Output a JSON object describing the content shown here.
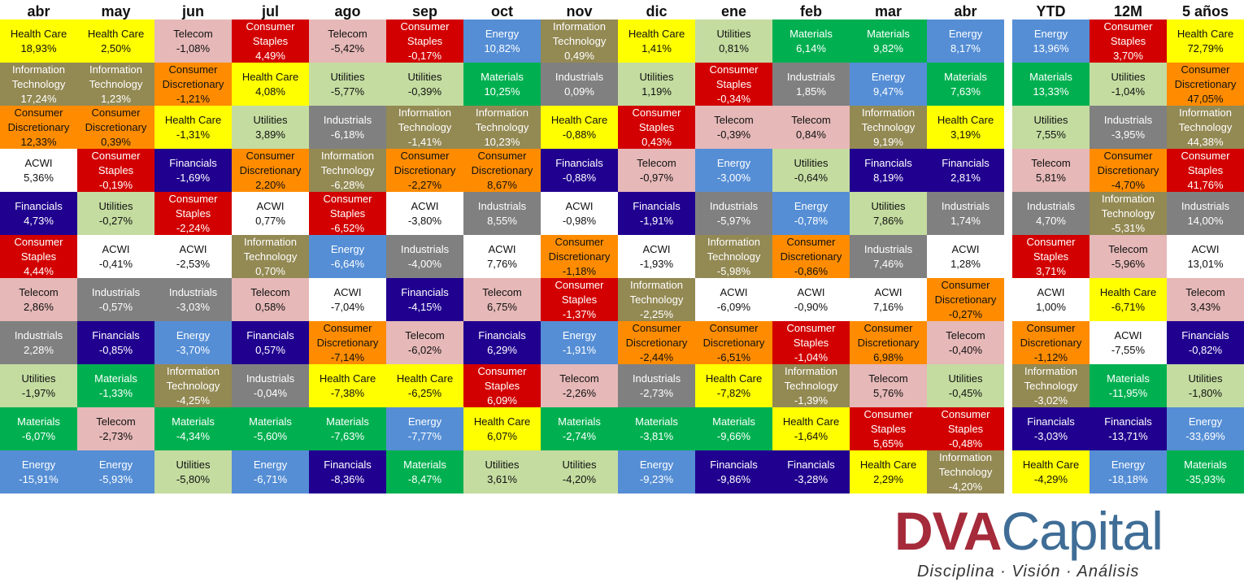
{
  "colors": {
    "Health Care": "#ffff00",
    "Information Technology": "#938953",
    "Consumer Discretionary": "#ff8c00",
    "ACWI": "#ffffff",
    "Financials": "#20008f",
    "Consumer Staples": "#d20000",
    "Telecom": "#e6b8b8",
    "Industrials": "#808080",
    "Utilities": "#c4dca0",
    "Materials": "#00b050",
    "Energy": "#558ed5"
  },
  "dark_text_sectors": [
    "Health Care",
    "Consumer Discretionary",
    "ACWI",
    "Telecom",
    "Utilities"
  ],
  "brand": {
    "dva": "DVA",
    "capital": "Capital",
    "tagline": "Disciplina · Visión · Análisis"
  },
  "chart_data": {
    "type": "table",
    "columns": [
      {
        "header": "abr",
        "cells": [
          {
            "s": "Health Care",
            "v": "18,93%"
          },
          {
            "s": "Information Technology",
            "v": "17,24%"
          },
          {
            "s": "Consumer Discretionary",
            "v": "12,33%"
          },
          {
            "s": "ACWI",
            "v": "5,36%"
          },
          {
            "s": "Financials",
            "v": "4,73%"
          },
          {
            "s": "Consumer Staples",
            "v": "4,44%"
          },
          {
            "s": "Telecom",
            "v": "2,86%"
          },
          {
            "s": "Industrials",
            "v": "2,28%"
          },
          {
            "s": "Utilities",
            "v": "-1,97%"
          },
          {
            "s": "Materials",
            "v": "-6,07%"
          },
          {
            "s": "Energy",
            "v": "-15,91%"
          }
        ]
      },
      {
        "header": "may",
        "cells": [
          {
            "s": "Health Care",
            "v": "2,50%"
          },
          {
            "s": "Information Technology",
            "v": "1,23%"
          },
          {
            "s": "Consumer Discretionary",
            "v": "0,39%"
          },
          {
            "s": "Consumer Staples",
            "v": "-0,19%"
          },
          {
            "s": "Utilities",
            "v": "-0,27%"
          },
          {
            "s": "ACWI",
            "v": "-0,41%"
          },
          {
            "s": "Industrials",
            "v": "-0,57%"
          },
          {
            "s": "Financials",
            "v": "-0,85%"
          },
          {
            "s": "Materials",
            "v": "-1,33%"
          },
          {
            "s": "Telecom",
            "v": "-2,73%"
          },
          {
            "s": "Energy",
            "v": "-5,93%"
          }
        ]
      },
      {
        "header": "jun",
        "cells": [
          {
            "s": "Telecom",
            "v": "-1,08%"
          },
          {
            "s": "Consumer Discretionary",
            "v": "-1,21%"
          },
          {
            "s": "Health Care",
            "v": "-1,31%"
          },
          {
            "s": "Financials",
            "v": "-1,69%"
          },
          {
            "s": "Consumer Staples",
            "v": "-2,24%"
          },
          {
            "s": "ACWI",
            "v": "-2,53%"
          },
          {
            "s": "Industrials",
            "v": "-3,03%"
          },
          {
            "s": "Energy",
            "v": "-3,70%"
          },
          {
            "s": "Information Technology",
            "v": "-4,25%"
          },
          {
            "s": "Materials",
            "v": "-4,34%"
          },
          {
            "s": "Utilities",
            "v": "-5,80%"
          }
        ]
      },
      {
        "header": "jul",
        "cells": [
          {
            "s": "Consumer Staples",
            "v": "4,49%"
          },
          {
            "s": "Health Care",
            "v": "4,08%"
          },
          {
            "s": "Utilities",
            "v": "3,89%"
          },
          {
            "s": "Consumer Discretionary",
            "v": "2,20%"
          },
          {
            "s": "ACWI",
            "v": "0,77%"
          },
          {
            "s": "Information Technology",
            "v": "0,70%"
          },
          {
            "s": "Telecom",
            "v": "0,58%"
          },
          {
            "s": "Financials",
            "v": "0,57%"
          },
          {
            "s": "Industrials",
            "v": "-0,04%"
          },
          {
            "s": "Materials",
            "v": "-5,60%"
          },
          {
            "s": "Energy",
            "v": "-6,71%"
          }
        ]
      },
      {
        "header": "ago",
        "cells": [
          {
            "s": "Telecom",
            "v": "-5,42%"
          },
          {
            "s": "Utilities",
            "v": "-5,77%"
          },
          {
            "s": "Industrials",
            "v": "-6,18%"
          },
          {
            "s": "Information Technology",
            "v": "-6,28%"
          },
          {
            "s": "Consumer Staples",
            "v": "-6,52%"
          },
          {
            "s": "Energy",
            "v": "-6,64%"
          },
          {
            "s": "ACWI",
            "v": "-7,04%"
          },
          {
            "s": "Consumer Discretionary",
            "v": "-7,14%"
          },
          {
            "s": "Health Care",
            "v": "-7,38%"
          },
          {
            "s": "Materials",
            "v": "-7,63%"
          },
          {
            "s": "Financials",
            "v": "-8,36%"
          }
        ]
      },
      {
        "header": "sep",
        "cells": [
          {
            "s": "Consumer Staples",
            "v": "-0,17%"
          },
          {
            "s": "Utilities",
            "v": "-0,39%"
          },
          {
            "s": "Information Technology",
            "v": "-1,41%"
          },
          {
            "s": "Consumer Discretionary",
            "v": "-2,27%"
          },
          {
            "s": "ACWI",
            "v": "-3,80%"
          },
          {
            "s": "Industrials",
            "v": "-4,00%"
          },
          {
            "s": "Financials",
            "v": "-4,15%"
          },
          {
            "s": "Telecom",
            "v": "-6,02%"
          },
          {
            "s": "Health Care",
            "v": "-6,25%"
          },
          {
            "s": "Energy",
            "v": "-7,77%"
          },
          {
            "s": "Materials",
            "v": "-8,47%"
          }
        ]
      },
      {
        "header": "oct",
        "cells": [
          {
            "s": "Energy",
            "v": "10,82%"
          },
          {
            "s": "Materials",
            "v": "10,25%"
          },
          {
            "s": "Information Technology",
            "v": "10,23%"
          },
          {
            "s": "Consumer Discretionary",
            "v": "8,67%"
          },
          {
            "s": "Industrials",
            "v": "8,55%"
          },
          {
            "s": "ACWI",
            "v": "7,76%"
          },
          {
            "s": "Telecom",
            "v": "6,75%"
          },
          {
            "s": "Financials",
            "v": "6,29%"
          },
          {
            "s": "Consumer Staples",
            "v": "6,09%"
          },
          {
            "s": "Health Care",
            "v": "6,07%"
          },
          {
            "s": "Utilities",
            "v": "3,61%"
          }
        ]
      },
      {
        "header": "nov",
        "cells": [
          {
            "s": "Information Technology",
            "v": "0,49%"
          },
          {
            "s": "Industrials",
            "v": "0,09%"
          },
          {
            "s": "Health Care",
            "v": "-0,88%"
          },
          {
            "s": "Financials",
            "v": "-0,88%"
          },
          {
            "s": "ACWI",
            "v": "-0,98%"
          },
          {
            "s": "Consumer Discretionary",
            "v": "-1,18%"
          },
          {
            "s": "Consumer Staples",
            "v": "-1,37%"
          },
          {
            "s": "Energy",
            "v": "-1,91%"
          },
          {
            "s": "Telecom",
            "v": "-2,26%"
          },
          {
            "s": "Materials",
            "v": "-2,74%"
          },
          {
            "s": "Utilities",
            "v": "-4,20%"
          }
        ]
      },
      {
        "header": "dic",
        "cells": [
          {
            "s": "Health Care",
            "v": "1,41%"
          },
          {
            "s": "Utilities",
            "v": "1,19%"
          },
          {
            "s": "Consumer Staples",
            "v": "0,43%"
          },
          {
            "s": "Telecom",
            "v": "-0,97%"
          },
          {
            "s": "Financials",
            "v": "-1,91%"
          },
          {
            "s": "ACWI",
            "v": "-1,93%"
          },
          {
            "s": "Information Technology",
            "v": "-2,25%"
          },
          {
            "s": "Consumer Discretionary",
            "v": "-2,44%"
          },
          {
            "s": "Industrials",
            "v": "-2,73%"
          },
          {
            "s": "Materials",
            "v": "-3,81%"
          },
          {
            "s": "Energy",
            "v": "-9,23%"
          }
        ]
      },
      {
        "header": "ene",
        "cells": [
          {
            "s": "Utilities",
            "v": "0,81%"
          },
          {
            "s": "Consumer Staples",
            "v": "-0,34%"
          },
          {
            "s": "Telecom",
            "v": "-0,39%"
          },
          {
            "s": "Energy",
            "v": "-3,00%"
          },
          {
            "s": "Industrials",
            "v": "-5,97%"
          },
          {
            "s": "Information Technology",
            "v": "-5,98%"
          },
          {
            "s": "ACWI",
            "v": "-6,09%"
          },
          {
            "s": "Consumer Discretionary",
            "v": "-6,51%"
          },
          {
            "s": "Health Care",
            "v": "-7,82%"
          },
          {
            "s": "Materials",
            "v": "-9,66%"
          },
          {
            "s": "Financials",
            "v": "-9,86%"
          }
        ]
      },
      {
        "header": "feb",
        "cells": [
          {
            "s": "Materials",
            "v": "6,14%"
          },
          {
            "s": "Industrials",
            "v": "1,85%"
          },
          {
            "s": "Telecom",
            "v": "0,84%"
          },
          {
            "s": "Utilities",
            "v": "-0,64%"
          },
          {
            "s": "Energy",
            "v": "-0,78%"
          },
          {
            "s": "Consumer Discretionary",
            "v": "-0,86%"
          },
          {
            "s": "ACWI",
            "v": "-0,90%"
          },
          {
            "s": "Consumer Staples",
            "v": "-1,04%"
          },
          {
            "s": "Information Technology",
            "v": "-1,39%"
          },
          {
            "s": "Health Care",
            "v": "-1,64%"
          },
          {
            "s": "Financials",
            "v": "-3,28%"
          }
        ]
      },
      {
        "header": "mar",
        "cells": [
          {
            "s": "Materials",
            "v": "9,82%"
          },
          {
            "s": "Energy",
            "v": "9,47%"
          },
          {
            "s": "Information Technology",
            "v": "9,19%"
          },
          {
            "s": "Financials",
            "v": "8,19%"
          },
          {
            "s": "Utilities",
            "v": "7,86%"
          },
          {
            "s": "Industrials",
            "v": "7,46%"
          },
          {
            "s": "ACWI",
            "v": "7,16%"
          },
          {
            "s": "Consumer Discretionary",
            "v": "6,98%"
          },
          {
            "s": "Telecom",
            "v": "5,76%"
          },
          {
            "s": "Consumer Staples",
            "v": "5,65%"
          },
          {
            "s": "Health Care",
            "v": "2,29%"
          }
        ]
      },
      {
        "header": "abr",
        "cells": [
          {
            "s": "Energy",
            "v": "8,17%"
          },
          {
            "s": "Materials",
            "v": "7,63%"
          },
          {
            "s": "Health Care",
            "v": "3,19%"
          },
          {
            "s": "Financials",
            "v": "2,81%"
          },
          {
            "s": "Industrials",
            "v": "1,74%"
          },
          {
            "s": "ACWI",
            "v": "1,28%"
          },
          {
            "s": "Consumer Discretionary",
            "v": "-0,27%"
          },
          {
            "s": "Telecom",
            "v": "-0,40%"
          },
          {
            "s": "Utilities",
            "v": "-0,45%"
          },
          {
            "s": "Consumer Staples",
            "v": "-0,48%"
          },
          {
            "s": "Information Technology",
            "v": "-4,20%"
          }
        ]
      },
      {
        "header": "YTD",
        "cells": [
          {
            "s": "Energy",
            "v": "13,96%"
          },
          {
            "s": "Materials",
            "v": "13,33%"
          },
          {
            "s": "Utilities",
            "v": "7,55%"
          },
          {
            "s": "Telecom",
            "v": "5,81%"
          },
          {
            "s": "Industrials",
            "v": "4,70%"
          },
          {
            "s": "Consumer Staples",
            "v": "3,71%"
          },
          {
            "s": "ACWI",
            "v": "1,00%"
          },
          {
            "s": "Consumer Discretionary",
            "v": "-1,12%"
          },
          {
            "s": "Information Technology",
            "v": "-3,02%"
          },
          {
            "s": "Financials",
            "v": "-3,03%"
          },
          {
            "s": "Health Care",
            "v": "-4,29%"
          }
        ]
      },
      {
        "header": "12M",
        "cells": [
          {
            "s": "Consumer Staples",
            "v": "3,70%"
          },
          {
            "s": "Utilities",
            "v": "-1,04%"
          },
          {
            "s": "Industrials",
            "v": "-3,95%"
          },
          {
            "s": "Consumer Discretionary",
            "v": "-4,70%"
          },
          {
            "s": "Information Technology",
            "v": "-5,31%"
          },
          {
            "s": "Telecom",
            "v": "-5,96%"
          },
          {
            "s": "Health Care",
            "v": "-6,71%"
          },
          {
            "s": "ACWI",
            "v": "-7,55%"
          },
          {
            "s": "Materials",
            "v": "-11,95%"
          },
          {
            "s": "Financials",
            "v": "-13,71%"
          },
          {
            "s": "Energy",
            "v": "-18,18%"
          }
        ]
      },
      {
        "header": "5 años",
        "cells": [
          {
            "s": "Health Care",
            "v": "72,79%"
          },
          {
            "s": "Consumer Discretionary",
            "v": "47,05%"
          },
          {
            "s": "Information Technology",
            "v": "44,38%"
          },
          {
            "s": "Consumer Staples",
            "v": "41,76%"
          },
          {
            "s": "Industrials",
            "v": "14,00%"
          },
          {
            "s": "ACWI",
            "v": "13,01%"
          },
          {
            "s": "Telecom",
            "v": "3,43%"
          },
          {
            "s": "Financials",
            "v": "-0,82%"
          },
          {
            "s": "Utilities",
            "v": "-1,80%"
          },
          {
            "s": "Energy",
            "v": "-33,69%"
          },
          {
            "s": "Materials",
            "v": "-35,93%"
          }
        ]
      }
    ]
  }
}
